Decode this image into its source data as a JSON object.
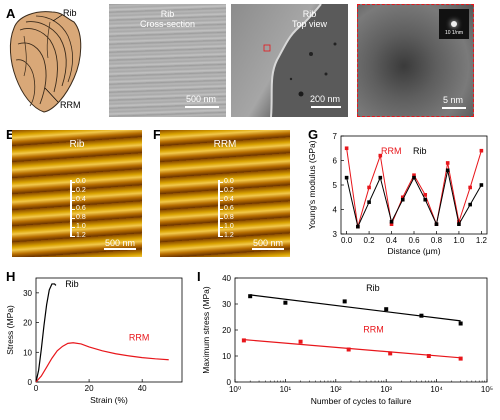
{
  "figure": {
    "panel_labels": [
      "A",
      "B",
      "C",
      "D",
      "E",
      "F",
      "G",
      "H",
      "I"
    ],
    "panel_A": {
      "label_rib": "Rib",
      "label_rrm": "RRM"
    },
    "panel_B": {
      "title_line1": "Rib",
      "title_line2": "Cross-section",
      "scale": "500 nm"
    },
    "panel_C": {
      "title_line1": "Rib",
      "title_line2": "Top view",
      "scale": "200 nm"
    },
    "panel_D": {
      "scale": "5 nm",
      "inset_scale": "10 1/nm"
    },
    "panel_E": {
      "title": "Rib",
      "scale": "500 nm",
      "ticks": [
        "0.0",
        "0.2",
        "0.4",
        "0.6",
        "0.8",
        "1.0",
        "1.2"
      ]
    },
    "panel_F": {
      "title": "RRM",
      "scale": "500 nm",
      "ticks": [
        "0.0",
        "0.2",
        "0.4",
        "0.6",
        "0.8",
        "1.0",
        "1.2"
      ]
    }
  },
  "chart_data": [
    {
      "panel": "G",
      "type": "line",
      "xlabel": "Distance (μm)",
      "ylabel": "Young's modulus (GPa)",
      "xlim": [
        -0.05,
        1.25
      ],
      "ylim": [
        3,
        7
      ],
      "x_ticks": [
        "0.0",
        "0.2",
        "0.4",
        "0.6",
        "0.8",
        "1.0",
        "1.2"
      ],
      "y_ticks": [
        "3",
        "4",
        "5",
        "6",
        "7"
      ],
      "series": [
        {
          "name": "Rib",
          "color": "#000000",
          "x": [
            0.0,
            0.1,
            0.2,
            0.3,
            0.4,
            0.5,
            0.6,
            0.7,
            0.8,
            0.9,
            1.0,
            1.1,
            1.2
          ],
          "y": [
            5.3,
            3.3,
            4.3,
            5.3,
            3.5,
            4.4,
            5.3,
            4.4,
            3.4,
            5.6,
            3.4,
            4.2,
            5.0
          ]
        },
        {
          "name": "RRM",
          "color": "#e8161b",
          "x": [
            0.0,
            0.1,
            0.2,
            0.3,
            0.4,
            0.5,
            0.6,
            0.7,
            0.8,
            0.9,
            1.0,
            1.1,
            1.2
          ],
          "y": [
            6.5,
            3.3,
            4.9,
            6.2,
            3.4,
            4.5,
            5.4,
            4.6,
            3.4,
            5.9,
            3.5,
            4.9,
            6.4
          ]
        }
      ],
      "legend": [
        "RRM",
        "Rib"
      ]
    },
    {
      "panel": "H",
      "type": "line",
      "xlabel": "Strain (%)",
      "ylabel": "Stress (MPa)",
      "xlim": [
        0,
        55
      ],
      "ylim": [
        0,
        35
      ],
      "x_ticks": [
        "0",
        "20",
        "40"
      ],
      "y_ticks": [
        "0",
        "10",
        "20",
        "30"
      ],
      "series": [
        {
          "name": "Rib",
          "color": "#000000",
          "x": [
            0,
            1,
            2,
            3,
            4,
            5,
            6,
            7,
            7.5
          ],
          "y": [
            0,
            4,
            11,
            19,
            26,
            31,
            33,
            33,
            32.5
          ]
        },
        {
          "name": "RRM",
          "color": "#e8161b",
          "x": [
            0,
            2,
            4,
            6,
            8,
            10,
            12,
            14,
            17,
            20,
            25,
            30,
            35,
            40,
            45,
            50
          ],
          "y": [
            0,
            2,
            5,
            8,
            10.5,
            12,
            13,
            13.2,
            12.8,
            11.8,
            10.5,
            9.5,
            8.8,
            8.2,
            7.8,
            7.5
          ]
        }
      ]
    },
    {
      "panel": "I",
      "type": "scatter",
      "xlabel": "Number of cycles to failure",
      "ylabel": "Maximum stress (MPa)",
      "xscale": "log",
      "xlim": [
        1,
        100000
      ],
      "ylim": [
        0,
        40
      ],
      "x_ticks": [
        "10⁰",
        "10¹",
        "10²",
        "10³",
        "10⁴",
        "10⁵"
      ],
      "y_ticks": [
        "0",
        "10",
        "20",
        "30",
        "40"
      ],
      "series": [
        {
          "name": "Rib",
          "color": "#000000",
          "x": [
            2,
            10,
            150,
            1000,
            5000,
            30000
          ],
          "y": [
            33,
            30.5,
            31,
            28,
            25.5,
            22.5
          ],
          "fit": [
            [
              2,
              33.5
            ],
            [
              30000,
              23.5
            ]
          ]
        },
        {
          "name": "RRM",
          "color": "#e8161b",
          "x": [
            1.5,
            20,
            180,
            1200,
            7000,
            30000
          ],
          "y": [
            16,
            15.5,
            12.5,
            11,
            10,
            9
          ],
          "fit": [
            [
              1.5,
              16.3
            ],
            [
              30000,
              9.3
            ]
          ]
        }
      ]
    }
  ]
}
